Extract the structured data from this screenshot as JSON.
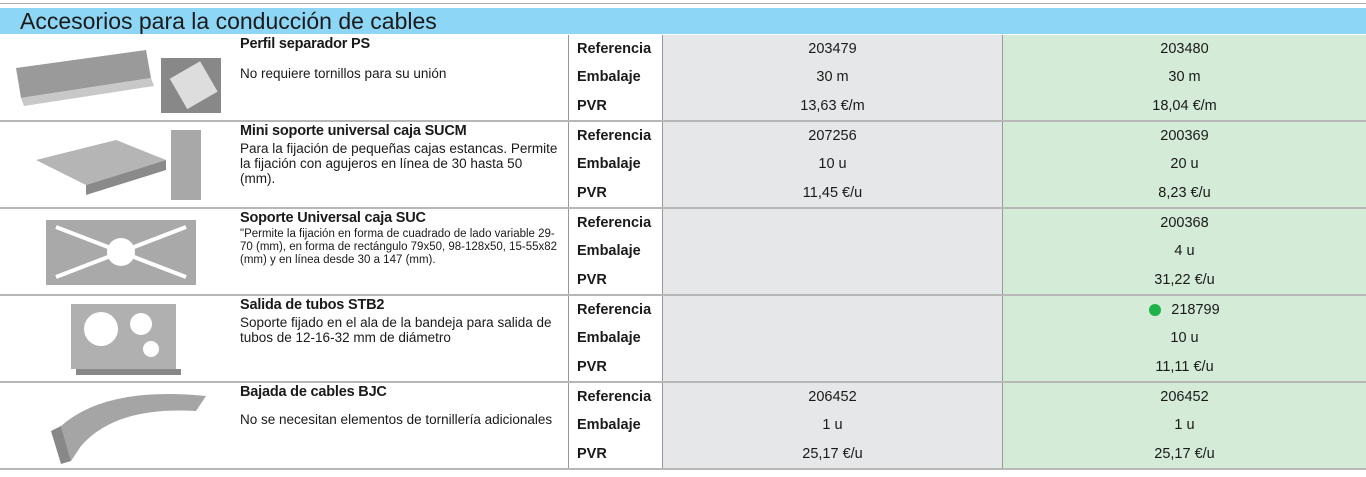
{
  "title": "Accesorios para la conducción de cables",
  "products": [
    {
      "name": "Perfil separador PS",
      "description": "No requiere tornillos para su unión",
      "labels": [
        "Referencia",
        "Embalaje",
        "PVR"
      ],
      "col1": [
        "203479",
        "30 m",
        "13,63 €/m"
      ],
      "col2": [
        "203480",
        "30 m",
        "18,04 €/m"
      ]
    },
    {
      "name": "Mini soporte universal caja SUCM",
      "description": "Para la fijación de pequeñas cajas estancas. Permite la fijación con agujeros en línea de 30 hasta 50 (mm).",
      "labels": [
        "Referencia",
        "Embalaje",
        "PVR"
      ],
      "col1": [
        "207256",
        "10 u",
        "11,45 €/u"
      ],
      "col2": [
        "200369",
        "20 u",
        "8,23 €/u"
      ]
    },
    {
      "name": "Soporte Universal caja SUC",
      "description": "\"Permite la fijación en forma de cuadrado de lado variable 29-70 (mm), en forma de rectángulo 79x50, 98-128x50, 15-55x82 (mm) y en línea desde 30 a 147 (mm).",
      "labels": [
        "Referencia",
        "Embalaje",
        "PVR"
      ],
      "col2": [
        "200368",
        "4 u",
        "31,22 €/u"
      ]
    },
    {
      "name": "Salida de tubos STB2",
      "description": "Soporte fijado en el ala de la bandeja para salida de tubos de 12-16-32 mm de diámetro",
      "labels": [
        "Referencia",
        "Embalaje",
        "PVR"
      ],
      "col2": [
        "218799",
        "10 u",
        "11,11 €/u"
      ]
    },
    {
      "name": "Bajada de cables BJC",
      "description": "No se necesitan elementos de tornillería adicionales",
      "labels": [
        "Referencia",
        "Embalaje",
        "PVR"
      ],
      "col1": [
        "206452",
        "1 u",
        "25,17 €/u"
      ],
      "col2": [
        "206452",
        "1 u",
        "25,17 €/u"
      ]
    }
  ]
}
